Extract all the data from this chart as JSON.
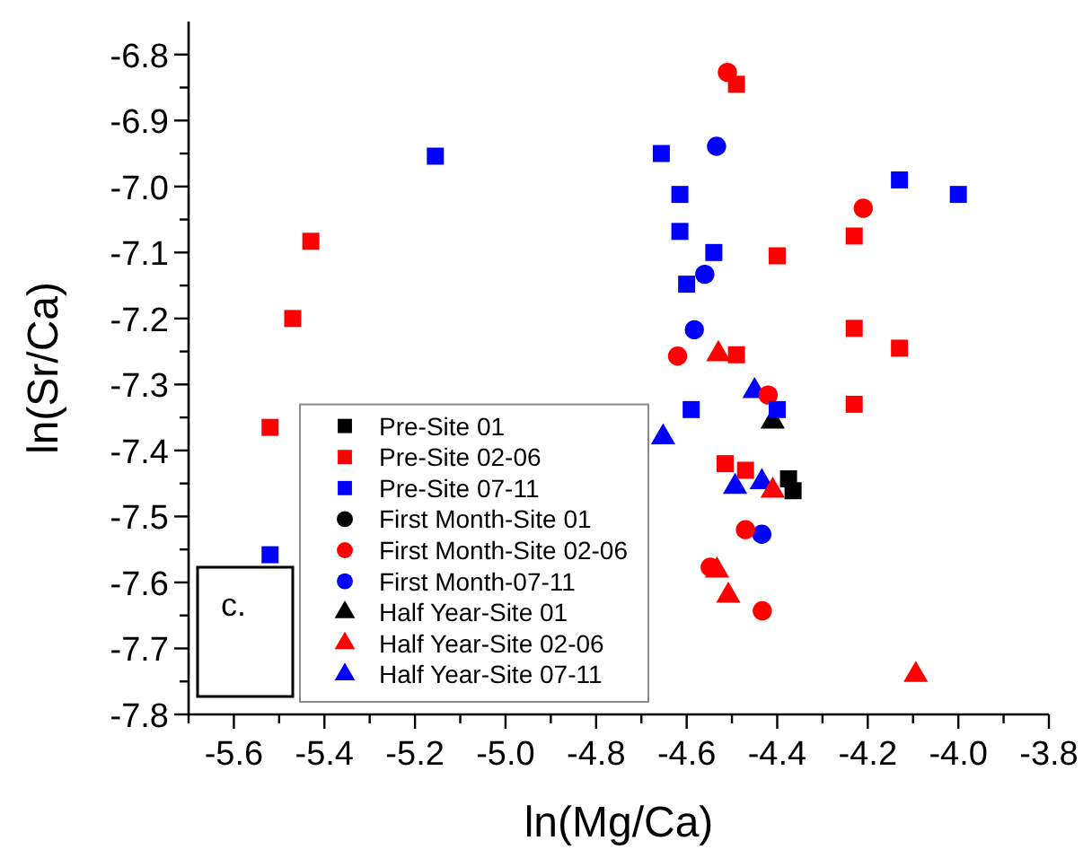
{
  "chart_data": {
    "type": "scatter",
    "xlabel": "ln(Mg/Ca)",
    "ylabel": "ln(Sr/Ca)",
    "xlim": [
      -5.7,
      -3.8
    ],
    "ylim": [
      -7.8,
      -6.75
    ],
    "xticks": [
      {
        "value": -5.7,
        "label": null
      },
      -5.6,
      {
        "value": -5.5,
        "label": null
      },
      -5.4,
      {
        "value": -5.3,
        "label": null
      },
      -5.2,
      {
        "value": -5.1,
        "label": null
      },
      {
        "value": -5,
        "label": "-5.0"
      },
      {
        "value": -4.9,
        "label": null
      },
      -4.8,
      {
        "value": -4.7,
        "label": null
      },
      -4.6,
      {
        "value": -4.5,
        "label": null
      },
      -4.4,
      {
        "value": -4.3,
        "label": null
      },
      -4.2,
      {
        "value": -4.1,
        "label": null
      },
      {
        "value": -4,
        "label": "-4.0"
      },
      {
        "value": -3.9,
        "label": null
      },
      -3.8
    ],
    "yticks": [
      -7.8,
      {
        "value": -7.75,
        "label": null
      },
      -7.7,
      {
        "value": -7.65,
        "label": null
      },
      -7.6,
      {
        "value": -7.55,
        "label": null
      },
      -7.5,
      {
        "value": -7.45,
        "label": null
      },
      -7.4,
      {
        "value": -7.35,
        "label": null
      },
      -7.3,
      {
        "value": -7.25,
        "label": null
      },
      -7.2,
      {
        "value": -7.15,
        "label": null
      },
      -7.1,
      {
        "value": -7.05,
        "label": null
      },
      {
        "value": -7,
        "label": "-7.0"
      },
      {
        "value": -6.95,
        "label": null
      },
      -6.9,
      {
        "value": -6.85,
        "label": null
      },
      -6.8
    ],
    "grid": false,
    "legend": "bottom left",
    "annotations": [
      "c."
    ],
    "series": [
      {
        "name": "Pre-Site 01",
        "color": "#000000",
        "marker": "square",
        "x": [
          -4.375,
          -4.365
        ],
        "values": [
          -7.443,
          -7.461
        ]
      },
      {
        "name": "Pre-Site 02-06",
        "color": "#ff0000",
        "marker": "square",
        "x": [
          -5.43,
          -5.47,
          -5.52,
          -4.49,
          -4.4,
          -4.23,
          -4.23,
          -4.13,
          -4.49,
          -4.23,
          -4.515,
          -4.47
        ],
        "values": [
          -7.083,
          -7.2,
          -7.365,
          -6.845,
          -7.105,
          -7.075,
          -7.215,
          -7.245,
          -7.255,
          -7.33,
          -7.42,
          -7.43
        ]
      },
      {
        "name": "Pre-Site 07-11",
        "color": "#0000ff",
        "marker": "square",
        "x": [
          -5.155,
          -5.52,
          -4.656,
          -4.615,
          -4.615,
          -4.54,
          -4.6,
          -4.59,
          -4.4,
          -4.13,
          -4.0
        ],
        "values": [
          -6.954,
          -7.558,
          -6.95,
          -7.012,
          -7.068,
          -7.1,
          -7.148,
          -7.338,
          -7.338,
          -6.99,
          -7.012
        ]
      },
      {
        "name": "First Month-Site 01",
        "color": "#000000",
        "marker": "circle"
      },
      {
        "name": "First Month-Site 02-06",
        "color": "#ff0000",
        "marker": "circle",
        "x": [
          -4.51,
          -4.21,
          -4.62,
          -4.42,
          -4.47,
          -4.548,
          -4.433
        ],
        "values": [
          -6.827,
          -7.033,
          -7.257,
          -7.316,
          -7.52,
          -7.577,
          -7.643
        ]
      },
      {
        "name": "First Month-07-11",
        "color": "#0000ff",
        "marker": "circle",
        "x": [
          -4.534,
          -4.56,
          -4.583,
          -4.434
        ],
        "values": [
          -6.939,
          -7.133,
          -7.217,
          -7.527
        ]
      },
      {
        "name": "Half Year-Site 01",
        "color": "#000000",
        "marker": "triangle",
        "x": [
          -4.41
        ],
        "values": [
          -7.356
        ]
      },
      {
        "name": "Half Year-Site 02-06",
        "color": "#ff0000",
        "marker": "triangle",
        "x": [
          -4.53,
          -4.41,
          -4.533,
          -4.508,
          -4.094
        ],
        "values": [
          -7.254,
          -7.461,
          -7.582,
          -7.62,
          -7.74
        ]
      },
      {
        "name": "Half Year-Site 07-11",
        "color": "#0000ff",
        "marker": "triangle",
        "x": [
          -4.45,
          -4.652,
          -4.493,
          -4.434
        ],
        "values": [
          -7.31,
          -7.38,
          -7.455,
          -7.448
        ]
      }
    ]
  }
}
